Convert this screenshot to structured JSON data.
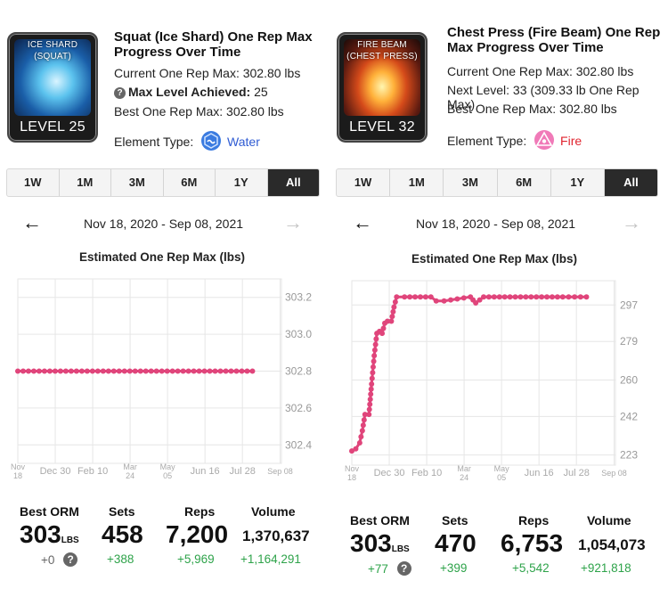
{
  "panels": [
    {
      "card": {
        "art_label_1": "ICE SHARD",
        "art_label_2": "(SQUAT)",
        "level_label": "LEVEL 25"
      },
      "title": "Squat (Ice Shard) One Rep Max Progress Over Time",
      "current_orm": "Current One Rep Max: 302.80 lbs",
      "line2_bold": "Max Level Achieved:",
      "line2_value": " 25",
      "line2_plain": "",
      "best_orm": "Best One Rep Max: 302.80 lbs",
      "element_label": "Element Type:",
      "element_value": "Water",
      "element_color": "#2f5bd3",
      "element_icon": "water-element-icon",
      "ranges": [
        "1W",
        "1M",
        "3M",
        "6M",
        "1Y",
        "All"
      ],
      "active_range": "All",
      "date_range": "Nov 18, 2020 - Sep 08, 2021",
      "chart_data": {
        "type": "line",
        "title": "Estimated One Rep Max (lbs)",
        "x_ticks": [
          {
            "l1": "Nov",
            "l2": "18",
            "pos": 0.0,
            "rot": true
          },
          {
            "l1": "Dec 30",
            "l2": "",
            "pos": 0.142
          },
          {
            "l1": "Feb 10",
            "l2": "",
            "pos": 0.284
          },
          {
            "l1": "Mar",
            "l2": "24",
            "pos": 0.426,
            "rot": true
          },
          {
            "l1": "May",
            "l2": "05",
            "pos": 0.568,
            "rot": true
          },
          {
            "l1": "Jun 16",
            "l2": "",
            "pos": 0.71
          },
          {
            "l1": "Jul 28",
            "l2": "",
            "pos": 0.852
          },
          {
            "l1": "Sep 08",
            "l2": "",
            "pos": 0.995,
            "small": true
          }
        ],
        "y_ticks": [
          "303.2",
          "303.0",
          "302.8",
          "302.6",
          "302.4"
        ],
        "y_values": [
          303.2,
          303.0,
          302.8,
          302.6,
          302.4
        ],
        "ylim": [
          302.3,
          303.3
        ],
        "x_start": 0.0,
        "x_end": 0.89,
        "points": [
          [
            0.0,
            302.8
          ],
          [
            0.89,
            302.8
          ]
        ],
        "line_color": "#e0457b"
      },
      "stats": {
        "best_orm_label": "Best ORM",
        "best_orm_value": "303",
        "best_orm_unit": "LBS",
        "best_orm_delta": "+0",
        "sets_label": "Sets",
        "sets_value": "458",
        "sets_delta": "+388",
        "reps_label": "Reps",
        "reps_value": "7,200",
        "reps_delta": "+5,969",
        "volume_label": "Volume",
        "volume_value": "1,370,637",
        "volume_delta": "+1,164,291"
      }
    },
    {
      "card": {
        "art_label_1": "FIRE BEAM",
        "art_label_2": "(CHEST PRESS)",
        "level_label": "LEVEL 32"
      },
      "title": "Chest Press (Fire Beam) One Rep Max Progress Over Time",
      "current_orm": "Current One Rep Max: 302.80 lbs",
      "line2_bold": "",
      "line2_value": "",
      "line2_plain": "Next Level: 33 (309.33 lb One Rep Max)",
      "best_orm": "Best One Rep Max: 302.80 lbs",
      "element_label": "Element Type:",
      "element_value": "Fire",
      "element_color": "#e0242f",
      "element_icon": "fire-element-icon",
      "ranges": [
        "1W",
        "1M",
        "3M",
        "6M",
        "1Y",
        "All"
      ],
      "active_range": "All",
      "date_range": "Nov 18, 2020 - Sep 08, 2021",
      "chart_data": {
        "type": "line",
        "title": "Estimated One Rep Max (lbs)",
        "x_ticks": [
          {
            "l1": "Nov",
            "l2": "18",
            "pos": 0.0,
            "rot": true
          },
          {
            "l1": "Dec 30",
            "l2": "",
            "pos": 0.142
          },
          {
            "l1": "Feb 10",
            "l2": "",
            "pos": 0.284
          },
          {
            "l1": "Mar",
            "l2": "24",
            "pos": 0.426,
            "rot": true
          },
          {
            "l1": "May",
            "l2": "05",
            "pos": 0.568,
            "rot": true
          },
          {
            "l1": "Jun 16",
            "l2": "",
            "pos": 0.71
          },
          {
            "l1": "Jul 28",
            "l2": "",
            "pos": 0.852
          },
          {
            "l1": "Sep 08",
            "l2": "",
            "pos": 0.995,
            "small": true
          }
        ],
        "y_ticks": [
          "297",
          "279",
          "260",
          "242",
          "223"
        ],
        "y_values": [
          297,
          279,
          260,
          242,
          223
        ],
        "ylim": [
          218,
          309
        ],
        "points": [
          [
            0.0,
            225
          ],
          [
            0.015,
            226
          ],
          [
            0.03,
            229
          ],
          [
            0.04,
            235
          ],
          [
            0.05,
            243
          ],
          [
            0.065,
            243
          ],
          [
            0.075,
            258
          ],
          [
            0.085,
            272
          ],
          [
            0.095,
            283
          ],
          [
            0.105,
            284
          ],
          [
            0.115,
            283
          ],
          [
            0.125,
            288
          ],
          [
            0.135,
            289
          ],
          [
            0.15,
            289
          ],
          [
            0.16,
            296
          ],
          [
            0.17,
            301
          ],
          [
            0.2,
            301
          ],
          [
            0.3,
            301
          ],
          [
            0.32,
            299
          ],
          [
            0.35,
            299
          ],
          [
            0.4,
            300
          ],
          [
            0.45,
            301
          ],
          [
            0.47,
            298
          ],
          [
            0.5,
            301
          ],
          [
            0.6,
            301
          ],
          [
            0.7,
            301
          ],
          [
            0.8,
            301
          ],
          [
            0.89,
            301
          ]
        ],
        "line_color": "#e0457b"
      },
      "stats": {
        "best_orm_label": "Best ORM",
        "best_orm_value": "303",
        "best_orm_unit": "LBS",
        "best_orm_delta": "+77",
        "sets_label": "Sets",
        "sets_value": "470",
        "sets_delta": "+399",
        "reps_label": "Reps",
        "reps_value": "6,753",
        "reps_delta": "+5,542",
        "volume_label": "Volume",
        "volume_value": "1,054,073",
        "volume_delta": "+921,818"
      }
    }
  ]
}
